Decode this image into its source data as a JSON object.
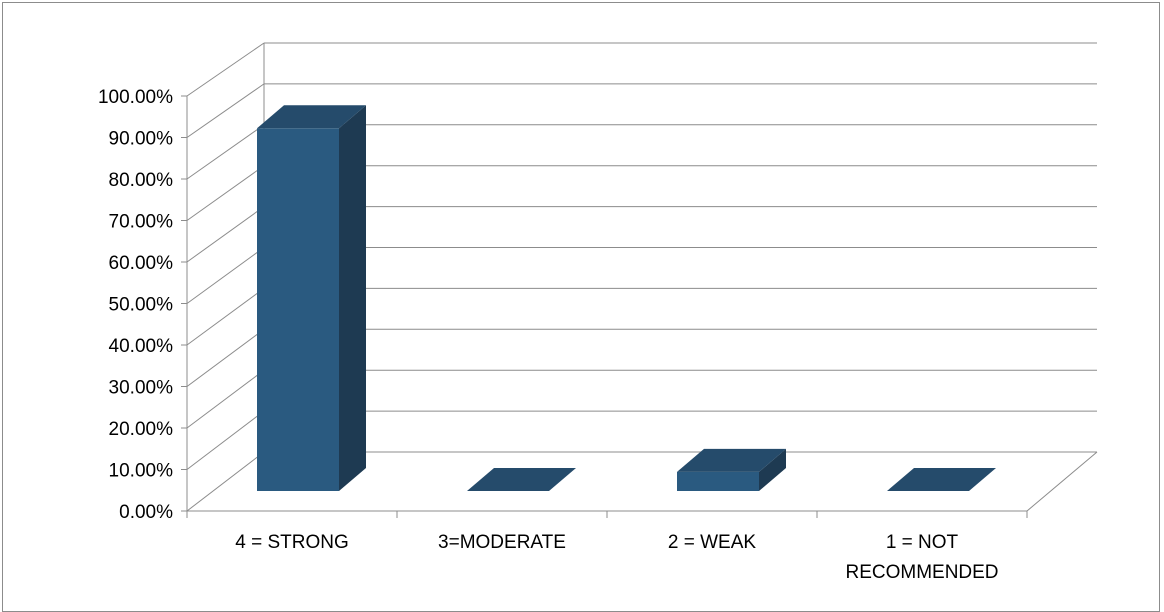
{
  "chart_data": {
    "type": "bar",
    "style": "3d-column",
    "categories": [
      "4 = STRONG",
      "3=MODERATE",
      "2 = WEAK",
      "1 = NOT RECOMMENDED"
    ],
    "category_lines": [
      [
        "4 = STRONG"
      ],
      [
        "3=MODERATE"
      ],
      [
        "2 = WEAK"
      ],
      [
        "1 = NOT",
        "RECOMMENDED"
      ]
    ],
    "values": [
      0.95,
      0.0,
      0.05,
      0.0
    ],
    "ylim": [
      0,
      1
    ],
    "ytick_labels": [
      "0.00%",
      "10.00%",
      "20.00%",
      "30.00%",
      "40.00%",
      "50.00%",
      "60.00%",
      "70.00%",
      "80.00%",
      "90.00%",
      "100.00%"
    ],
    "title": "",
    "xlabel": "",
    "ylabel": "",
    "legend": "none",
    "grid": true,
    "colors": {
      "bar_front": "#2a5a80",
      "bar_top": "#254b6b",
      "bar_side": "#1e3a52",
      "grid": "#8c8c8c"
    }
  }
}
